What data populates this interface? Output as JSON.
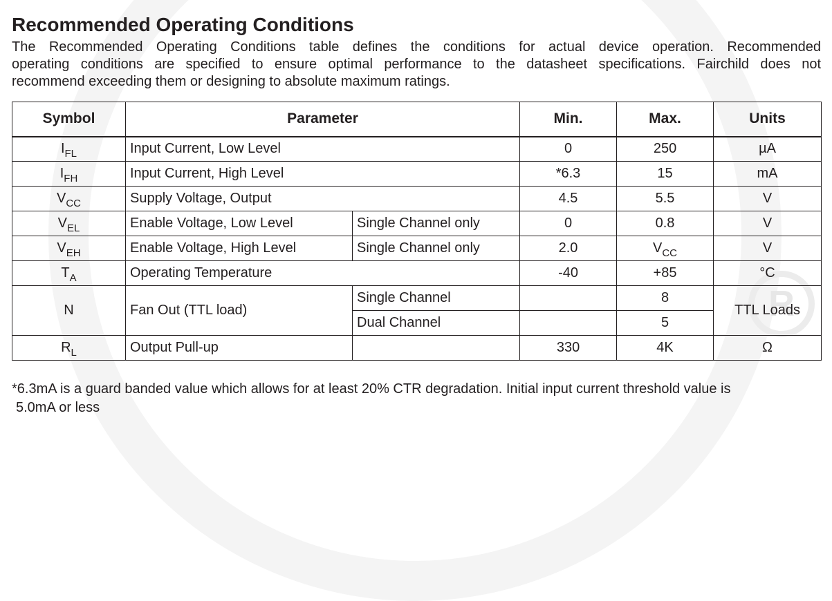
{
  "title": "Recommended Operating Conditions",
  "intro_lines": [
    "The Recommended Operating Conditions table defines the conditions for actual device operation. Recommended",
    "operating conditions are specified to ensure optimal performance to the datasheet specifications. Fairchild does not",
    "recommend exceeding them or designing to absolute maximum ratings."
  ],
  "table": {
    "headers": {
      "symbol": "Symbol",
      "parameter": "Parameter",
      "min": "Min.",
      "max": "Max.",
      "units": "Units"
    },
    "rows": [
      {
        "sym": "I",
        "sym_sub": "FL",
        "param": "Input Current, Low Level",
        "cond": "",
        "min": "0",
        "max": "250",
        "units": "µA"
      },
      {
        "sym": "I",
        "sym_sub": "FH",
        "param": "Input Current, High Level",
        "cond": "",
        "min": "*6.3",
        "max": "15",
        "units": "mA"
      },
      {
        "sym": "V",
        "sym_sub": "CC",
        "param": "Supply Voltage, Output",
        "cond": "",
        "min": "4.5",
        "max": "5.5",
        "units": "V"
      },
      {
        "sym": "V",
        "sym_sub": "EL",
        "param": "Enable Voltage, Low Level",
        "cond": "Single Channel only",
        "min": "0",
        "max": "0.8",
        "units": "V"
      },
      {
        "sym": "V",
        "sym_sub": "EH",
        "param": "Enable Voltage, High Level",
        "cond": "Single Channel only",
        "min": "2.0",
        "max": "V",
        "max_sub": "CC",
        "units": "V"
      },
      {
        "sym": "T",
        "sym_sub": "A",
        "param": "Operating Temperature",
        "cond": "",
        "min": "-40",
        "max": "+85",
        "units": "°C"
      },
      {
        "sym": "N",
        "sym_sub": "",
        "param": "Fan Out (TTL load)",
        "cond": "Single Channel",
        "min": "",
        "max": "8",
        "units": "TTL Loads"
      },
      {
        "cond": "Dual Channel",
        "min": "",
        "max": "5"
      },
      {
        "sym": "R",
        "sym_sub": "L",
        "param": "Output Pull-up",
        "cond": "",
        "min": "330",
        "max": "4K",
        "units": "Ω"
      }
    ]
  },
  "footnote_lines": [
    "*6.3mA is a guard banded value which allows for at least 20% CTR degradation. Initial input current threshold value is",
    "5.0mA or less"
  ],
  "colors": {
    "text": "#231f20",
    "watermark": "#f4f4f4"
  }
}
